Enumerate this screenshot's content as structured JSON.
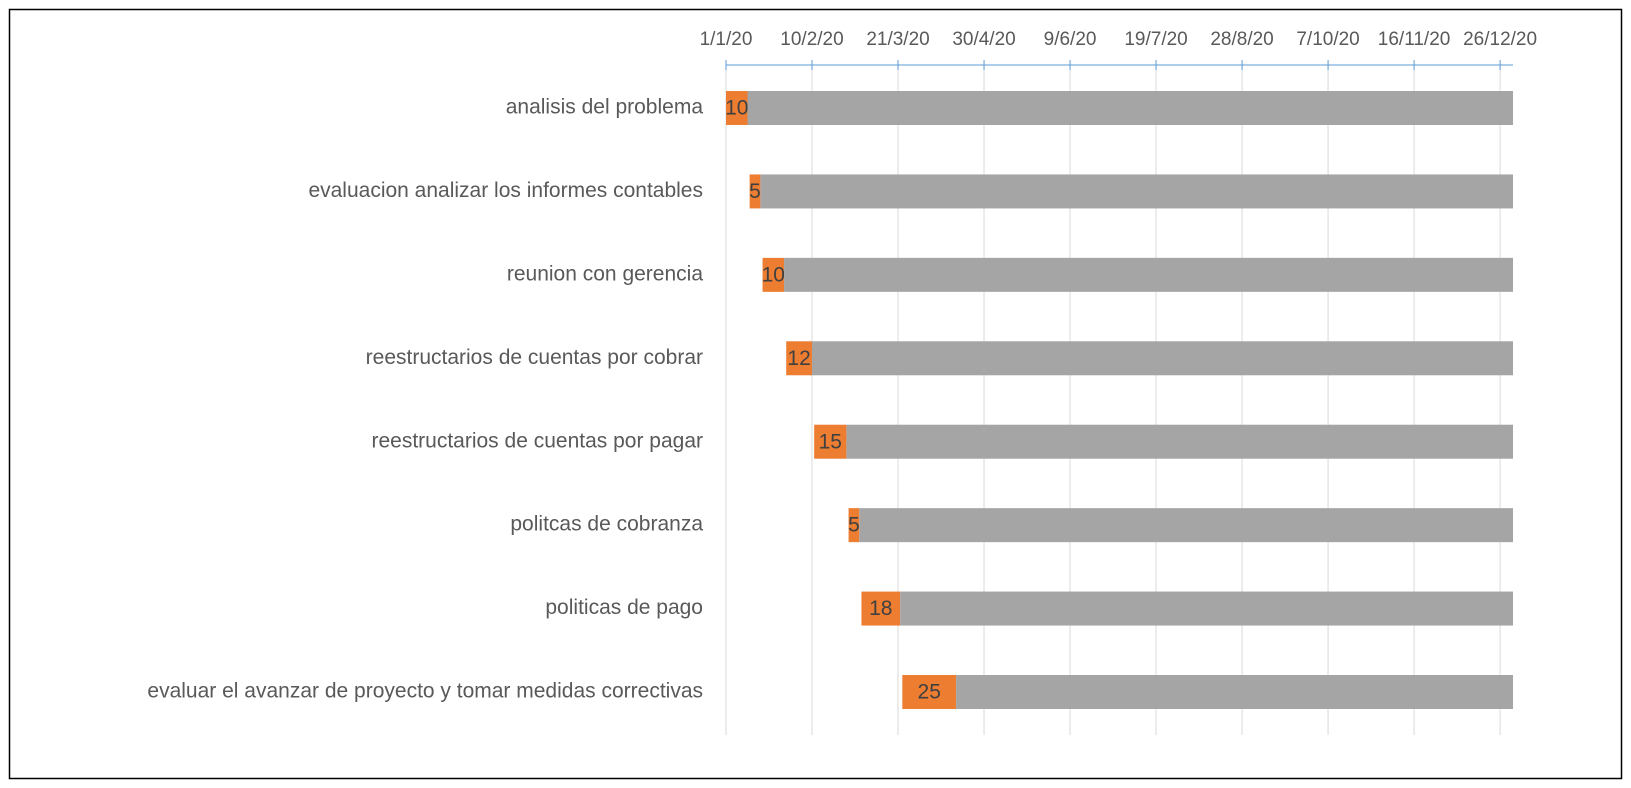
{
  "chart_data": {
    "type": "gantt",
    "categories": [
      "analisis del problema",
      "evaluacion analizar los informes contables",
      "reunion con gerencia",
      "reestructarios de cuentas por cobrar",
      "reestructarios de cuentas por pagar",
      "politcas de cobranza",
      "politicas de pago",
      "evaluar el avanzar de proyecto y tomar medidas correctivas"
    ],
    "series": [
      {
        "color": "none",
        "values": [
          43831,
          43842,
          43848,
          43859,
          43872,
          43888,
          43894,
          43913
        ]
      },
      {
        "color": "#ed7d31",
        "values": [
          10,
          5,
          10,
          12,
          15,
          5,
          18,
          25
        ]
      },
      {
        "color": "#a5a5a5",
        "values": [
          356,
          350,
          339,
          326,
          310,
          304,
          285,
          259
        ]
      }
    ],
    "xlim": [
      43831,
      44197
    ],
    "xticks": [
      {
        "value": 43831,
        "label": "1/1/20"
      },
      {
        "value": 43871,
        "label": "10/2/20"
      },
      {
        "value": 43911,
        "label": "21/3/20"
      },
      {
        "value": 43951,
        "label": "30/4/20"
      },
      {
        "value": 43991,
        "label": "9/6/20"
      },
      {
        "value": 44031,
        "label": "19/7/20"
      },
      {
        "value": 44071,
        "label": "28/8/20"
      },
      {
        "value": 44111,
        "label": "7/10/20"
      },
      {
        "value": 44151,
        "label": "16/11/20"
      },
      {
        "value": 44191,
        "label": "26/12/20"
      }
    ],
    "grid": true
  }
}
